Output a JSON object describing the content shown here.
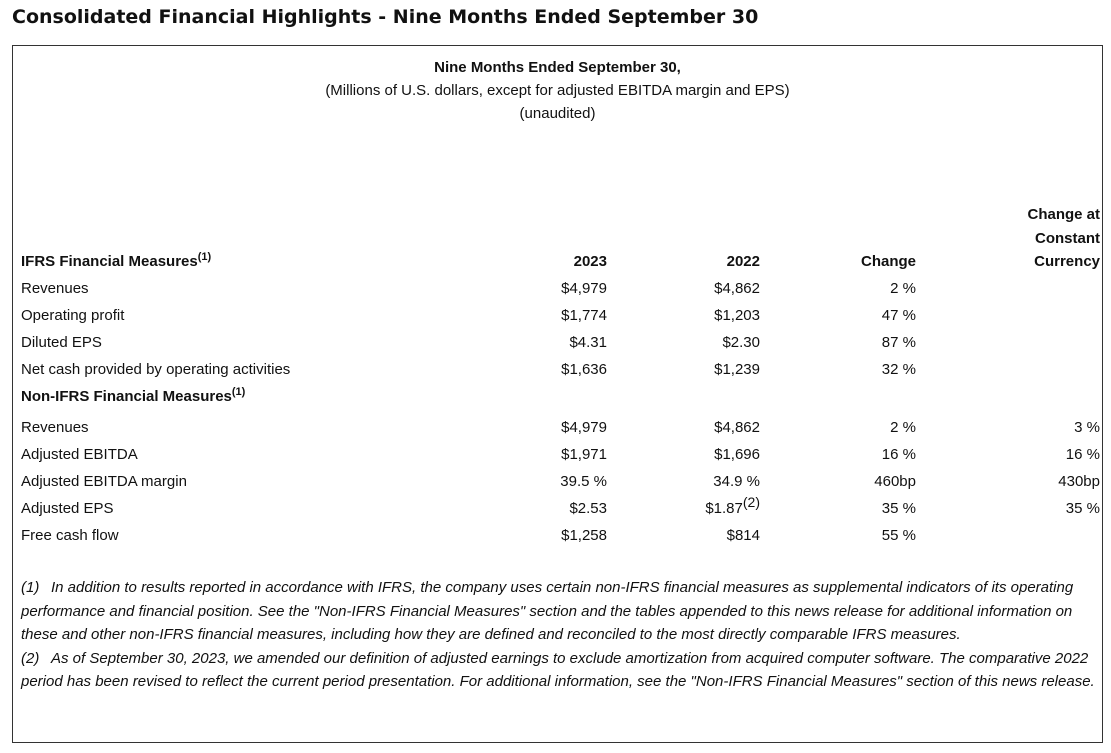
{
  "title": "Consolidated Financial Highlights - Nine Months Ended September 30",
  "header": {
    "period": "Nine Months Ended September 30,",
    "units": "(Millions of U.S. dollars, except for adjusted EBITDA margin and EPS)",
    "audit": "(unaudited)"
  },
  "columns": {
    "y2023": "2023",
    "y2022": "2022",
    "change": "Change",
    "ccy1": "Change at",
    "ccy2": "Constant",
    "ccy3": "Currency"
  },
  "ifrs": {
    "label": "IFRS Financial Measures",
    "sup": "(1)",
    "rows": [
      {
        "label": "Revenues",
        "y2023": "$4,979",
        "y2022": "$4,862",
        "change": "2 %",
        "ccy": ""
      },
      {
        "label": "Operating profit",
        "y2023": "$1,774",
        "y2022": "$1,203",
        "change": "47 %",
        "ccy": ""
      },
      {
        "label": "Diluted EPS",
        "y2023": "$4.31",
        "y2022": "$2.30",
        "change": "87 %",
        "ccy": ""
      },
      {
        "label": "Net cash provided by operating activities",
        "y2023": "$1,636",
        "y2022": "$1,239",
        "change": "32 %",
        "ccy": ""
      }
    ]
  },
  "nonifrs": {
    "label": "Non-IFRS Financial Measures",
    "sup": "(1)",
    "rows": [
      {
        "label": "Revenues",
        "y2023": "$4,979",
        "y2022": "$4,862",
        "change": "2 %",
        "ccy": "3 %"
      },
      {
        "label": "Adjusted EBITDA",
        "y2023": "$1,971",
        "y2022": "$1,696",
        "change": "16 %",
        "ccy": "16 %"
      },
      {
        "label": "Adjusted EBITDA margin",
        "y2023": "39.5 %",
        "y2022": "34.9 %",
        "change": "460bp",
        "ccy": "430bp"
      },
      {
        "label": "Adjusted EPS",
        "y2023": "$2.53",
        "y2022": "$1.87",
        "y2022_sup": "(2)",
        "change": "35 %",
        "ccy": "35 %"
      },
      {
        "label": "Free cash flow",
        "y2023": "$1,258",
        "y2022": "$814",
        "change": "55 %",
        "ccy": ""
      }
    ]
  },
  "footnotes": [
    {
      "num": "(1)",
      "text": "In addition to results reported in accordance with IFRS, the company uses certain non-IFRS financial measures as supplemental indicators of its operating performance and financial position. See the \"Non-IFRS Financial Measures\" section and the tables appended to this news release for additional information on these and other non-IFRS financial measures, including how they are defined and reconciled to the most directly comparable IFRS measures."
    },
    {
      "num": "(2)",
      "text": "As of September 30, 2023, we amended our definition of adjusted earnings to exclude amortization from acquired computer software. The comparative 2022 period has been revised to reflect the current period presentation. For additional information, see the \"Non-IFRS Financial Measures\" section of this news release."
    }
  ]
}
